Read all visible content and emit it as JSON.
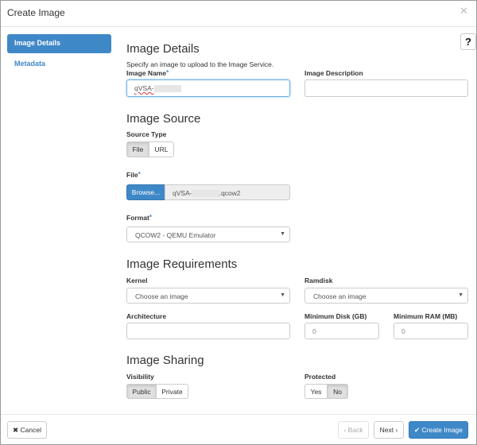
{
  "modal": {
    "title": "Create Image",
    "close_icon": "times-icon"
  },
  "sidebar": {
    "items": [
      {
        "label": "Image Details",
        "active": true
      },
      {
        "label": "Metadata",
        "active": false
      }
    ]
  },
  "help_label": "?",
  "details": {
    "heading": "Image Details",
    "description": "Specify an image to upload to the Image Service.",
    "name_label": "Image Name",
    "name_value": "qVSA-",
    "desc_label": "Image Description",
    "desc_value": ""
  },
  "source": {
    "heading": "Image Source",
    "type_label": "Source Type",
    "types": [
      "File",
      "URL"
    ],
    "selected": "File",
    "file_label": "File",
    "browse": "Browse...",
    "file_prefix": "qVSA-",
    "file_suffix": ".qcow2",
    "format_label": "Format",
    "format_value": "QCOW2 - QEMU Emulator"
  },
  "requirements": {
    "heading": "Image Requirements",
    "kernel_label": "Kernel",
    "kernel_value": "Choose an image",
    "ramdisk_label": "Ramdisk",
    "ramdisk_value": "Choose an image",
    "arch_label": "Architecture",
    "arch_value": "",
    "disk_label": "Minimum Disk (GB)",
    "disk_placeholder": "0",
    "ram_label": "Minimum RAM (MB)",
    "ram_placeholder": "0"
  },
  "sharing": {
    "heading": "Image Sharing",
    "visibility_label": "Visibility",
    "visibility": [
      "Public",
      "Private"
    ],
    "visibility_selected": "Public",
    "protected_label": "Protected",
    "protected": [
      "Yes",
      "No"
    ],
    "protected_selected": "No"
  },
  "footer": {
    "cancel": "Cancel",
    "back": "Back",
    "next": "Next",
    "create": "Create Image"
  },
  "colors": {
    "primary": "#3f88c8"
  }
}
